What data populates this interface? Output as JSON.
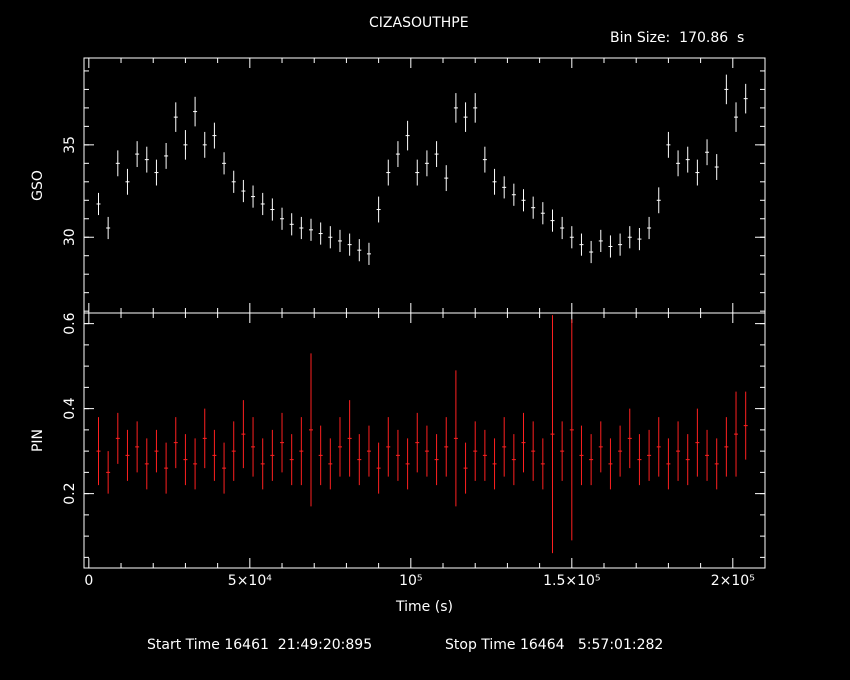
{
  "title": "CIZASOUTHPE",
  "bin_size_label": "Bin Size:  170.86  s",
  "footer": {
    "start": "Start Time 16461  21:49:20:895",
    "stop": "Stop Time 16464   5:57:01:282"
  },
  "colors": {
    "background": "#000000",
    "axes": "#ffffff",
    "gso": "#ffffff",
    "pin": "#ff2020"
  },
  "chart_data": [
    {
      "type": "scatter",
      "panel": "top",
      "ylabel": "GSO",
      "ylim": [
        25.9,
        39.7
      ],
      "xlim": [
        -1500,
        210000
      ],
      "y_ticks": [
        30,
        35
      ],
      "y_tick_labels": [
        "30",
        "35"
      ],
      "grid": false,
      "error_bars": true,
      "series": [
        {
          "values_note": "",
          "x": [
            3000,
            6000,
            9000,
            12000,
            15000,
            18000,
            21000,
            24000,
            27000,
            30000,
            33000,
            36000,
            39000,
            42000,
            45000,
            48000,
            51000,
            54000,
            57000,
            60000,
            63000,
            66000,
            69000,
            72000,
            75000,
            78000,
            81000,
            84000,
            87000,
            90000,
            93000,
            96000,
            99000,
            102000,
            105000,
            108000,
            111000,
            114000,
            117000,
            120000,
            123000,
            126000,
            129000,
            132000,
            135000,
            138000,
            141000,
            144000,
            147000,
            150000,
            153000,
            156000,
            159000,
            162000,
            165000,
            168000,
            171000,
            174000,
            177000,
            180000,
            183000,
            186000,
            189000,
            192000,
            195000,
            198000,
            201000,
            204000
          ],
          "y": [
            31.8,
            30.5,
            34.0,
            33.0,
            34.5,
            34.2,
            33.5,
            34.4,
            36.5,
            35.0,
            36.8,
            35.0,
            35.5,
            34.0,
            33.0,
            32.5,
            32.2,
            31.8,
            31.5,
            31.0,
            30.7,
            30.5,
            30.4,
            30.2,
            30.0,
            29.8,
            29.6,
            29.3,
            29.1,
            31.5,
            33.5,
            34.5,
            35.5,
            33.5,
            34.0,
            34.5,
            33.2,
            37.0,
            36.5,
            37.0,
            34.2,
            33.0,
            32.7,
            32.3,
            32.0,
            31.6,
            31.3,
            30.9,
            30.5,
            30.0,
            29.6,
            29.2,
            29.8,
            29.5,
            29.6,
            30.0,
            29.9,
            30.5,
            32.0,
            35.0,
            34.0,
            34.2,
            33.5,
            34.6,
            33.8,
            38.0,
            36.5,
            37.5
          ],
          "err": [
            0.6,
            0.6,
            0.7,
            0.7,
            0.7,
            0.7,
            0.7,
            0.7,
            0.8,
            0.8,
            0.8,
            0.7,
            0.7,
            0.6,
            0.6,
            0.6,
            0.6,
            0.6,
            0.6,
            0.6,
            0.6,
            0.6,
            0.6,
            0.6,
            0.6,
            0.6,
            0.6,
            0.6,
            0.6,
            0.7,
            0.7,
            0.7,
            0.8,
            0.7,
            0.7,
            0.7,
            0.7,
            0.8,
            0.8,
            0.8,
            0.7,
            0.7,
            0.6,
            0.6,
            0.6,
            0.6,
            0.6,
            0.6,
            0.6,
            0.6,
            0.6,
            0.6,
            0.6,
            0.6,
            0.6,
            0.6,
            0.6,
            0.6,
            0.7,
            0.7,
            0.7,
            0.7,
            0.7,
            0.7,
            0.7,
            0.8,
            0.8,
            0.8
          ]
        }
      ]
    },
    {
      "type": "scatter",
      "panel": "bottom",
      "ylabel": "PIN",
      "xlabel": "Time (s)",
      "ylim": [
        0.025,
        0.625
      ],
      "xlim": [
        -1500,
        210000
      ],
      "y_ticks": [
        0.2,
        0.4,
        0.6
      ],
      "y_tick_labels": [
        "0.2",
        "0.4",
        "0.6"
      ],
      "x_ticks": [
        0,
        50000,
        100000,
        150000,
        200000
      ],
      "x_tick_labels": [
        "0",
        "5×10⁴",
        "10⁵",
        "1.5×10⁵",
        "2×10⁵"
      ],
      "grid": false,
      "error_bars": true,
      "series": [
        {
          "x": [
            3000,
            6000,
            9000,
            12000,
            15000,
            18000,
            21000,
            24000,
            27000,
            30000,
            33000,
            36000,
            39000,
            42000,
            45000,
            48000,
            51000,
            54000,
            57000,
            60000,
            63000,
            66000,
            69000,
            72000,
            75000,
            78000,
            81000,
            84000,
            87000,
            90000,
            93000,
            96000,
            99000,
            102000,
            105000,
            108000,
            111000,
            114000,
            117000,
            120000,
            123000,
            126000,
            129000,
            132000,
            135000,
            138000,
            141000,
            144000,
            147000,
            150000,
            153000,
            156000,
            159000,
            162000,
            165000,
            168000,
            171000,
            174000,
            177000,
            180000,
            183000,
            186000,
            189000,
            192000,
            195000,
            198000,
            201000,
            204000
          ],
          "y": [
            0.3,
            0.25,
            0.33,
            0.29,
            0.31,
            0.27,
            0.3,
            0.26,
            0.32,
            0.28,
            0.27,
            0.33,
            0.29,
            0.26,
            0.3,
            0.34,
            0.31,
            0.27,
            0.29,
            0.32,
            0.28,
            0.3,
            0.35,
            0.29,
            0.27,
            0.31,
            0.33,
            0.28,
            0.3,
            0.26,
            0.31,
            0.29,
            0.27,
            0.32,
            0.3,
            0.28,
            0.31,
            0.33,
            0.26,
            0.3,
            0.29,
            0.27,
            0.31,
            0.28,
            0.32,
            0.3,
            0.27,
            0.34,
            0.3,
            0.35,
            0.29,
            0.28,
            0.31,
            0.27,
            0.3,
            0.33,
            0.28,
            0.29,
            0.31,
            0.27,
            0.3,
            0.28,
            0.32,
            0.29,
            0.27,
            0.31,
            0.34,
            0.36
          ],
          "err": [
            0.08,
            0.05,
            0.06,
            0.06,
            0.06,
            0.06,
            0.05,
            0.06,
            0.06,
            0.06,
            0.06,
            0.07,
            0.06,
            0.06,
            0.07,
            0.08,
            0.07,
            0.06,
            0.06,
            0.07,
            0.06,
            0.08,
            0.18,
            0.07,
            0.06,
            0.07,
            0.09,
            0.06,
            0.06,
            0.06,
            0.07,
            0.06,
            0.06,
            0.07,
            0.06,
            0.06,
            0.07,
            0.16,
            0.06,
            0.07,
            0.06,
            0.06,
            0.07,
            0.06,
            0.07,
            0.07,
            0.06,
            0.28,
            0.07,
            0.26,
            0.07,
            0.06,
            0.06,
            0.06,
            0.06,
            0.07,
            0.06,
            0.06,
            0.07,
            0.06,
            0.07,
            0.06,
            0.08,
            0.06,
            0.06,
            0.07,
            0.1,
            0.08
          ]
        }
      ]
    }
  ]
}
